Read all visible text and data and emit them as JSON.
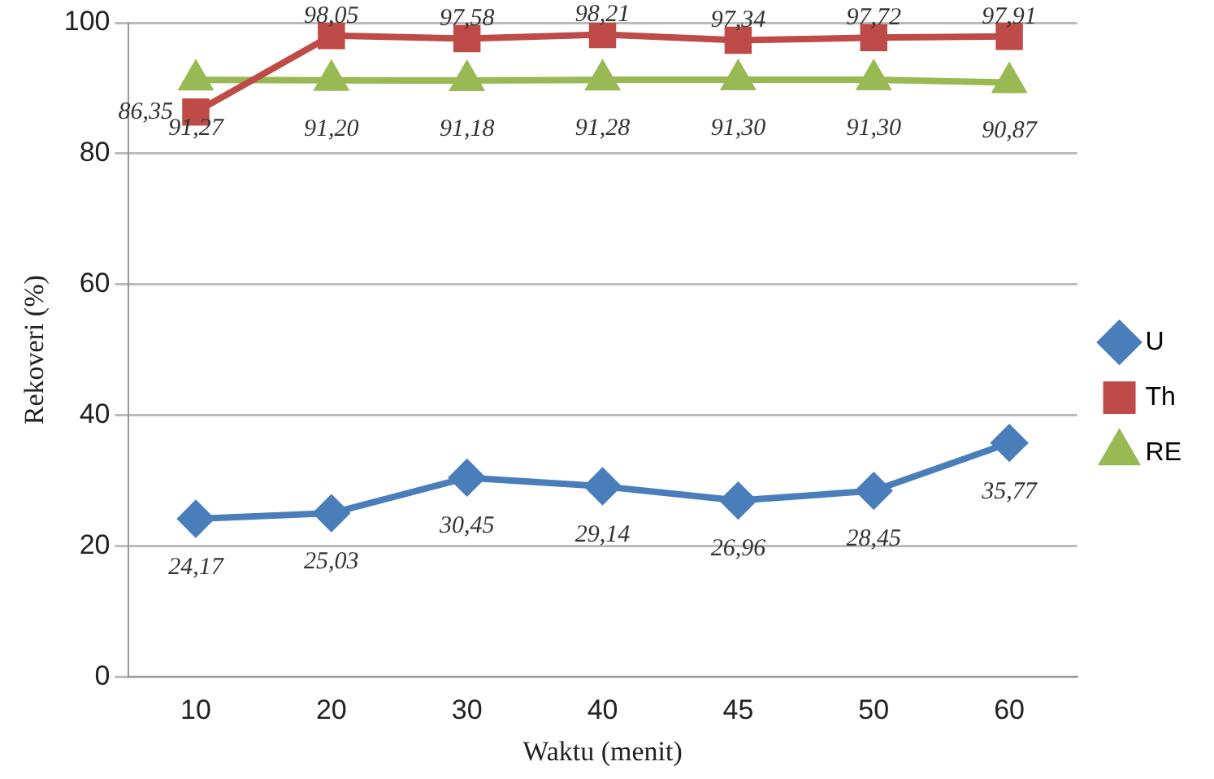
{
  "chart_data": {
    "type": "line",
    "xlabel": "Waktu (menit)",
    "ylabel": "Rekoveri (%)",
    "categories": [
      "10",
      "20",
      "30",
      "40",
      "45",
      "50",
      "60"
    ],
    "ylim": [
      0,
      100
    ],
    "yticks": [
      0,
      20,
      40,
      60,
      80,
      100
    ],
    "grid": "y",
    "legend": "right",
    "series": [
      {
        "name": "U",
        "color": "#4a7ebb",
        "marker": "diamond",
        "values": [
          24.17,
          25.03,
          30.45,
          29.14,
          26.96,
          28.45,
          35.77
        ],
        "value_labels": [
          "24,17",
          "25,03",
          "30,45",
          "29,14",
          "26,96",
          "28,45",
          "35,77"
        ]
      },
      {
        "name": "Th",
        "color": "#be4b48",
        "marker": "square",
        "values": [
          86.35,
          98.05,
          97.58,
          98.21,
          97.34,
          97.72,
          97.91
        ],
        "value_labels": [
          "86,35",
          "98,05",
          "97,58",
          "98,21",
          "97,34",
          "97,72",
          "97,91"
        ]
      },
      {
        "name": "RE",
        "color": "#98b954",
        "marker": "triangle",
        "values": [
          91.27,
          91.2,
          91.18,
          91.28,
          91.3,
          91.3,
          90.87
        ],
        "value_labels": [
          "91,27",
          "91,20",
          "91,18",
          "91,28",
          "91,30",
          "91,30",
          "90,87"
        ]
      }
    ]
  }
}
